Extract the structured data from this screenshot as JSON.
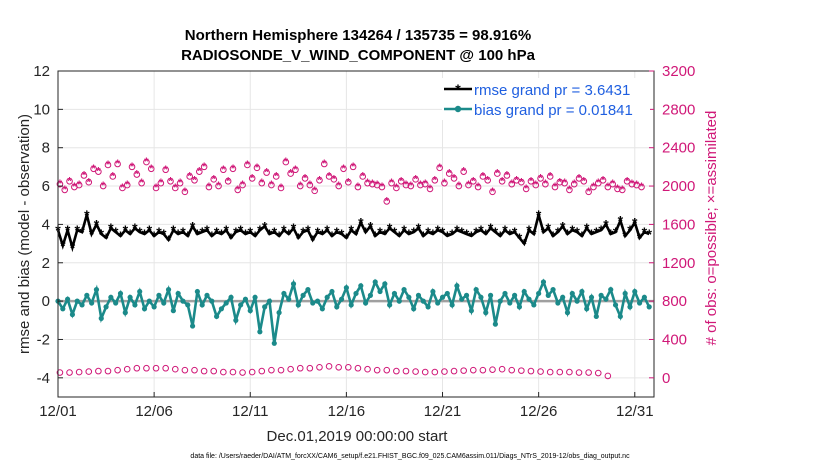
{
  "chart_data": {
    "type": "line",
    "title_line1": "Northern Hemisphere 134264 / 135735 = 98.916%",
    "title_line2": "RADIOSONDE_V_WIND_COMPONENT @ 100 hPa",
    "xlabel": "Dec.01,2019 00:00:00 start",
    "ylabel": "rmse and bias (model - observation)",
    "ylabel_right": "# of obs: o=possible; ×=assimilated",
    "footnote": "data file: /Users/raeder/DAI/ATM_forcXX/CAM6_setup/f.e21.FHIST_BGC.f09_025.CAM6assim.011/Diags_NTrS_2019-12/obs_diag_output.nc",
    "xlim": [
      0,
      31
    ],
    "ylim": [
      -5,
      12
    ],
    "ylim_right": [
      -200,
      3200
    ],
    "x_ticks": [
      0,
      5,
      10,
      15,
      20,
      25,
      30
    ],
    "x_tick_labels": [
      "12/01",
      "12/06",
      "12/11",
      "12/16",
      "12/21",
      "12/26",
      "12/31"
    ],
    "y_ticks": [
      -4,
      -2,
      0,
      2,
      4,
      6,
      8,
      10,
      12
    ],
    "y_ticks_right": [
      0,
      400,
      800,
      1200,
      1600,
      2000,
      2400,
      2800,
      3200
    ],
    "grid": true,
    "zero_line": 0,
    "legend_position": "top-right",
    "series": [
      {
        "name": "rmse",
        "legend_label": "rmse grand pr = 3.6431",
        "color": "#000000",
        "axis": "left",
        "marker": "asterisk",
        "values": [
          3.7,
          2.9,
          3.7,
          2.8,
          3.7,
          3.6,
          4.5,
          3.5,
          4.0,
          3.5,
          3.3,
          3.8,
          3.6,
          3.4,
          3.7,
          3.5,
          3.8,
          3.6,
          3.5,
          3.7,
          3.4,
          3.6,
          3.5,
          3.2,
          3.7,
          3.5,
          3.6,
          3.4,
          3.9,
          3.5,
          3.6,
          3.7,
          3.4,
          3.6,
          3.5,
          3.7,
          3.3,
          3.6,
          3.7,
          3.5,
          3.6,
          3.4,
          3.7,
          3.9,
          3.5,
          3.6,
          3.4,
          3.7,
          3.5,
          3.8,
          3.3,
          3.6,
          3.7,
          3.2,
          3.6,
          3.5,
          3.7,
          3.4,
          3.6,
          3.5,
          3.3,
          3.7,
          3.5,
          4.1,
          3.6,
          3.9,
          3.4,
          3.6,
          3.5,
          3.8,
          3.6,
          3.4,
          3.7,
          3.5,
          3.6,
          3.8,
          3.4,
          3.6,
          3.5,
          3.7,
          3.6,
          3.4,
          3.5,
          3.7,
          3.6,
          3.5,
          3.4,
          3.6,
          3.7,
          3.5,
          3.8,
          3.6,
          3.4,
          3.7,
          3.5,
          3.6,
          3.3,
          3.0,
          3.7,
          3.5,
          4.5,
          3.6,
          3.8,
          3.4,
          3.6,
          3.9,
          3.5,
          3.7,
          3.6,
          3.4,
          3.8,
          3.5,
          3.6,
          3.7,
          4.0,
          3.5,
          3.6,
          4.2,
          3.4,
          3.7,
          4.1,
          3.3,
          3.6,
          3.5
        ],
        "x_start": 0,
        "x_step": 0.25
      },
      {
        "name": "bias",
        "legend_label": "bias grand pr = 0.01841",
        "color": "#1b8a8a",
        "axis": "left",
        "marker": "dot",
        "values": [
          0.0,
          -0.4,
          0.1,
          -0.7,
          0.0,
          -0.2,
          0.3,
          -0.1,
          0.6,
          -0.9,
          -0.3,
          0.2,
          -0.1,
          0.4,
          -0.6,
          0.2,
          -0.2,
          0.5,
          -0.4,
          0.0,
          -0.3,
          0.3,
          -0.1,
          0.6,
          -0.5,
          0.4,
          0.0,
          -0.2,
          -1.3,
          0.5,
          -0.2,
          0.3,
          0.0,
          -0.8,
          -0.4,
          -0.1,
          0.2,
          -1.0,
          -0.2,
          0.1,
          -0.5,
          0.2,
          -1.6,
          -0.3,
          0.0,
          -2.2,
          -0.6,
          0.4,
          0.1,
          0.9,
          -0.2,
          0.3,
          0.6,
          -0.1,
          0.0,
          -0.4,
          0.2,
          0.5,
          -0.3,
          0.1,
          0.7,
          -0.2,
          0.4,
          0.8,
          -0.1,
          0.3,
          1.0,
          0.5,
          0.9,
          -0.2,
          0.4,
          0.0,
          0.6,
          0.2,
          -0.4,
          0.3,
          0.0,
          -0.3,
          0.5,
          -0.1,
          0.2,
          0.4,
          -0.2,
          0.8,
          0.1,
          0.3,
          -0.5,
          0.6,
          0.2,
          -0.6,
          0.3,
          -1.2,
          0.0,
          0.4,
          -0.1,
          0.3,
          -0.3,
          0.5,
          0.1,
          -0.2,
          0.4,
          1.0,
          0.3,
          0.6,
          -0.1,
          0.2,
          -0.6,
          0.4,
          0.0,
          0.5,
          -0.4,
          0.2,
          -0.8,
          0.3,
          0.1,
          0.6,
          -0.2,
          -0.8,
          0.4,
          -0.3,
          0.5,
          -0.1,
          0.2,
          -0.3
        ],
        "x_start": 0,
        "x_step": 0.25
      },
      {
        "name": "possible",
        "color": "#d01878",
        "axis": "right",
        "marker": "circle",
        "values": [
          2020,
          1960,
          2050,
          1990,
          2010,
          2110,
          2040,
          2180,
          2150,
          2000,
          2220,
          2100,
          2230,
          1980,
          2010,
          2200,
          2120,
          2030,
          2250,
          2180,
          1980,
          2030,
          2170,
          2050,
          1980,
          2030,
          1940,
          2100,
          2060,
          2150,
          2200,
          1990,
          2070,
          2000,
          2170,
          2050,
          2180,
          1960,
          2010,
          2220,
          2080,
          2190,
          2030,
          2140,
          2010,
          2100,
          1980,
          2250,
          2130,
          2170,
          2000,
          2080,
          2010,
          1950,
          2060,
          2230,
          2100,
          2070,
          2000,
          2180,
          2040,
          2200,
          1990,
          2100,
          2030,
          2020,
          2010,
          1990,
          1840,
          2030,
          1980,
          2050,
          2010,
          2000,
          2070,
          2010,
          2020,
          1970,
          2060,
          2190,
          2030,
          2130,
          2080,
          2000,
          2150,
          2010,
          2050,
          1990,
          2100,
          2060,
          1940,
          2130,
          2050,
          2110,
          2020,
          2060,
          2040,
          1970,
          2050,
          2010,
          2080,
          2020,
          2100,
          1990,
          2040,
          2030,
          1960,
          2020,
          2080,
          2050,
          1940,
          1990,
          2030,
          2060,
          1990,
          2020,
          1970,
          1960,
          2050,
          2020,
          2010,
          1990
        ],
        "x_start": 0.1,
        "x_step": 0.25
      },
      {
        "name": "assimilated",
        "color": "#d01878",
        "axis": "right",
        "marker": "asterisk",
        "values": [
          2030,
          1970,
          2060,
          2000,
          2020,
          2120,
          2050,
          2190,
          2160,
          2010,
          2230,
          2110,
          2240,
          1990,
          2020,
          2210,
          2130,
          2040,
          2260,
          2190,
          1990,
          2040,
          2180,
          2060,
          1990,
          2040,
          1950,
          2110,
          2070,
          2160,
          2210,
          2000,
          2080,
          2010,
          2180,
          2060,
          2190,
          1970,
          2020,
          2230,
          2090,
          2200,
          2040,
          2150,
          2020,
          2110,
          1990,
          2260,
          2140,
          2180,
          2010,
          2090,
          2020,
          1960,
          2070,
          2240,
          2110,
          2080,
          2010,
          2190,
          2050,
          2210,
          2000,
          2110,
          2040,
          2030,
          2020,
          2000,
          1850,
          2040,
          1990,
          2060,
          2020,
          2010,
          2080,
          2020,
          2030,
          1980,
          2070,
          2200,
          2040,
          2140,
          2090,
          2010,
          2160,
          2020,
          2060,
          2000,
          2110,
          2070,
          1950,
          2140,
          2060,
          2120,
          2030,
          2070,
          2050,
          1980,
          2060,
          2020,
          2090,
          2030,
          2110,
          2000,
          2050,
          2040,
          1970,
          2030,
          2090,
          2060,
          1950,
          2000,
          2040,
          2070,
          2000,
          2030,
          1980,
          1970,
          2060,
          2030,
          2020,
          2000
        ],
        "x_start": 0.1,
        "x_step": 0.25
      },
      {
        "name": "possible_low",
        "color": "#d01878",
        "axis": "right",
        "marker": "circle",
        "values": [
          55,
          55,
          60,
          65,
          70,
          70,
          80,
          90,
          100,
          100,
          100,
          100,
          90,
          80,
          80,
          70,
          70,
          60,
          60,
          55,
          60,
          70,
          80,
          80,
          90,
          100,
          100,
          110,
          120,
          110,
          110,
          100,
          90,
          80,
          80,
          70,
          70,
          65,
          60,
          60,
          65,
          70,
          75,
          80,
          80,
          85,
          90,
          80,
          75,
          70,
          65,
          60,
          60,
          60,
          55,
          55,
          50,
          20
        ],
        "x_start": 0.1,
        "x_step": 0.5
      }
    ],
    "legend": {
      "rmse_label": "rmse grand pr = 3.6431",
      "bias_label": "bias grand pr = 0.01841"
    }
  },
  "colors": {
    "rmse": "#000000",
    "bias": "#1b8a8a",
    "counts": "#d01878",
    "zero_line": "#a0a0a0",
    "grid": "#e6e6e6",
    "legend_text": "#1f5fe0"
  }
}
